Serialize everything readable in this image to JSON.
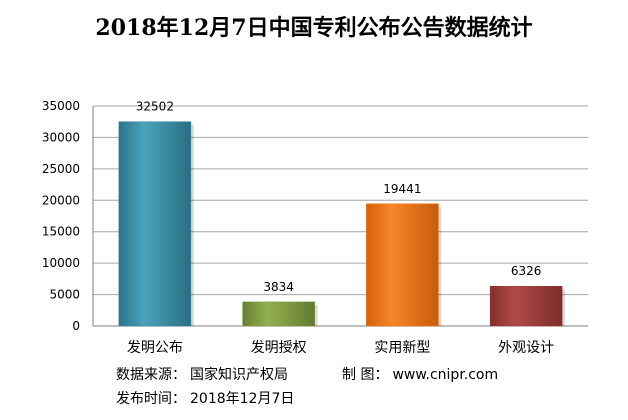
{
  "chart_data": {
    "type": "bar",
    "title": "2018年12月7日中国专利公布公告数据统计",
    "categories": [
      "发明公布",
      "发明授权",
      "实用新型",
      "外观设计"
    ],
    "values": [
      32502,
      3834,
      19441,
      6326
    ],
    "ylim": [
      0,
      35000
    ],
    "yticks": [
      0,
      5000,
      10000,
      15000,
      20000,
      25000,
      30000,
      35000
    ],
    "grid": true,
    "bar_colors": [
      "#31849b",
      "#77933c",
      "#e46c0a",
      "#953735"
    ]
  },
  "footer": {
    "source_label": "数据来源：",
    "source_value": "国家知识产权局",
    "maker_label": "制  图：",
    "maker_value": "www.cnipr.com",
    "date_label": "发布时间：",
    "date_value": "2018年12月7日"
  }
}
